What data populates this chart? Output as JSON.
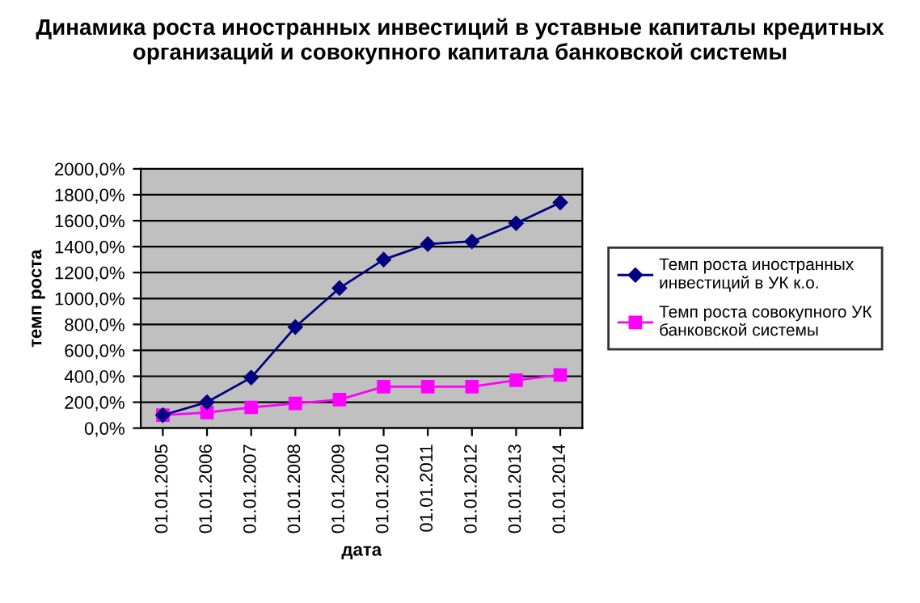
{
  "chart_data": {
    "type": "line",
    "title": "Динамика роста иностранных инвестиций в уставные капиталы кредитных организаций и совокупного капитала банковской системы",
    "xlabel": "дата",
    "ylabel": "темп роста",
    "categories": [
      "01.01.2005",
      "01.01.2006",
      "01.01.2007",
      "01.01.2008",
      "01.01.2009",
      "01.01.2010",
      "01.01.2011",
      "01.01.2012",
      "01.01.2013",
      "01.01.2014"
    ],
    "series": [
      {
        "name": "Темп роста иностранных инвестиций в УК к.о.",
        "color": "#000080",
        "marker": "diamond",
        "values": [
          100,
          200,
          390,
          780,
          1080,
          1300,
          1420,
          1440,
          1580,
          1740
        ]
      },
      {
        "name": "Темп роста совокупного УК банковской системы",
        "color": "#ff00ff",
        "marker": "square",
        "values": [
          100,
          120,
          160,
          190,
          220,
          320,
          320,
          320,
          370,
          410
        ]
      }
    ],
    "ylim": [
      0,
      2000
    ],
    "yticks": [
      {
        "value": 0,
        "label": "0,0%"
      },
      {
        "value": 200,
        "label": "200,0%"
      },
      {
        "value": 400,
        "label": "400,0%"
      },
      {
        "value": 600,
        "label": "600,0%"
      },
      {
        "value": 800,
        "label": "800,0%"
      },
      {
        "value": 1000,
        "label": "1000,0%"
      },
      {
        "value": 1200,
        "label": "1200,0%"
      },
      {
        "value": 1400,
        "label": "1400,0%"
      },
      {
        "value": 1600,
        "label": "1600,0%"
      },
      {
        "value": 1800,
        "label": "1800,0%"
      },
      {
        "value": 2000,
        "label": "2000,0%"
      }
    ],
    "grid": "y",
    "legend": "right",
    "line_style": "solid"
  }
}
